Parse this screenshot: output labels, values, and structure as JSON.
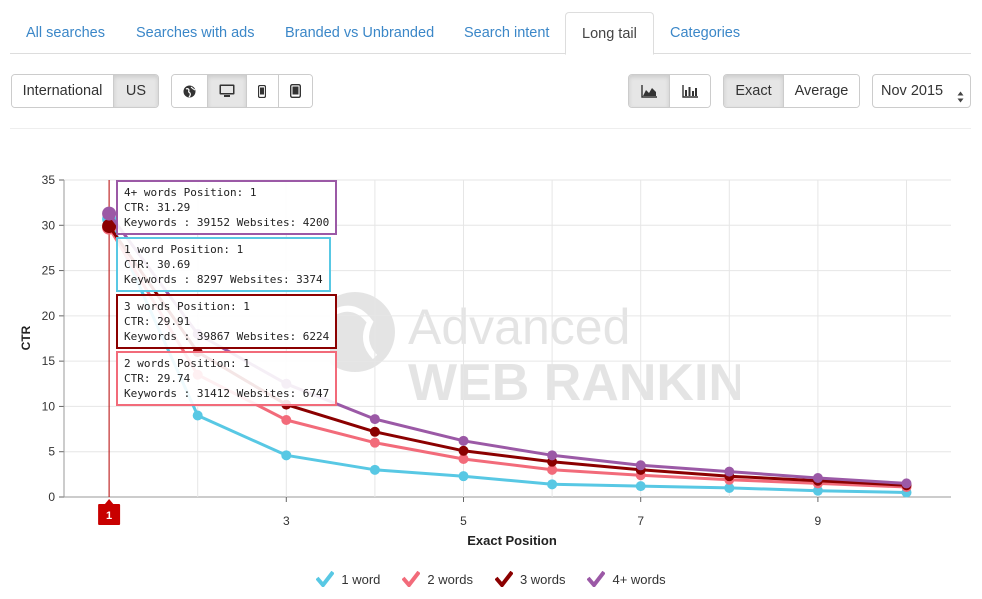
{
  "tabs": [
    {
      "label": "All searches",
      "active": false
    },
    {
      "label": "Searches with ads",
      "active": false
    },
    {
      "label": "Branded vs Unbranded",
      "active": false
    },
    {
      "label": "Search intent",
      "active": false
    },
    {
      "label": "Long tail",
      "active": true
    },
    {
      "label": "Categories",
      "active": false
    }
  ],
  "toolbar": {
    "region_international": "International",
    "region_us": "US",
    "devices": [
      "globe-icon",
      "desktop-icon",
      "mobile-icon",
      "tablet-icon"
    ],
    "chart_types": [
      "area-chart-icon",
      "bar-chart-icon"
    ],
    "mode_exact": "Exact",
    "mode_average": "Average",
    "period": "Nov 2015"
  },
  "watermark": {
    "line1": "Advanced",
    "line2": "WEB RANKING"
  },
  "chart_data": {
    "type": "line",
    "xlabel": "Exact Position",
    "ylabel": "CTR",
    "xlim": [
      1,
      10
    ],
    "ylim": [
      0,
      35
    ],
    "x_ticks": [
      3,
      5,
      7,
      9
    ],
    "y_ticks": [
      0,
      5,
      10,
      15,
      20,
      25,
      30,
      35
    ],
    "highlight_x_label": "1",
    "x": [
      1,
      2,
      3,
      4,
      5,
      6,
      7,
      8,
      9,
      10
    ],
    "series": [
      {
        "name": "1 word",
        "color": "#58c8e4",
        "values": [
          30.69,
          9.0,
          4.6,
          3.0,
          2.3,
          1.4,
          1.2,
          1.0,
          0.7,
          0.5
        ]
      },
      {
        "name": "2 words",
        "color": "#f26b7a",
        "values": [
          29.74,
          13.5,
          8.5,
          6.0,
          4.2,
          3.0,
          2.4,
          1.9,
          1.5,
          1.1
        ]
      },
      {
        "name": "3 words",
        "color": "#8b0000",
        "values": [
          29.91,
          16.0,
          10.2,
          7.2,
          5.1,
          3.9,
          3.0,
          2.3,
          1.8,
          1.3
        ]
      },
      {
        "name": "4+ words",
        "color": "#9b59a6",
        "values": [
          31.29,
          18.0,
          12.5,
          8.6,
          6.2,
          4.6,
          3.5,
          2.8,
          2.1,
          1.5
        ]
      }
    ]
  },
  "tooltips": [
    {
      "series": "4+ words",
      "color": "#9b59a6",
      "line1": "4+ words Position: 1",
      "line2": "CTR: 31.29",
      "line3": "Keywords : 39152 Websites: 4200"
    },
    {
      "series": "1 word",
      "color": "#58c8e4",
      "line1": "1 word Position: 1",
      "line2": "CTR: 30.69",
      "line3": "Keywords : 8297 Websites: 3374"
    },
    {
      "series": "3 words",
      "color": "#8b0000",
      "line1": "3 words Position: 1",
      "line2": "CTR: 29.91",
      "line3": "Keywords : 39867 Websites: 6224"
    },
    {
      "series": "2 words",
      "color": "#f26b7a",
      "line1": "2 words Position: 1",
      "line2": "CTR: 29.74",
      "line3": "Keywords : 31412 Websites: 6747"
    }
  ],
  "legend": [
    {
      "label": "1 word",
      "color": "#58c8e4"
    },
    {
      "label": "2 words",
      "color": "#f26b7a"
    },
    {
      "label": "3 words",
      "color": "#8b0000"
    },
    {
      "label": "4+ words",
      "color": "#9b59a6"
    }
  ]
}
